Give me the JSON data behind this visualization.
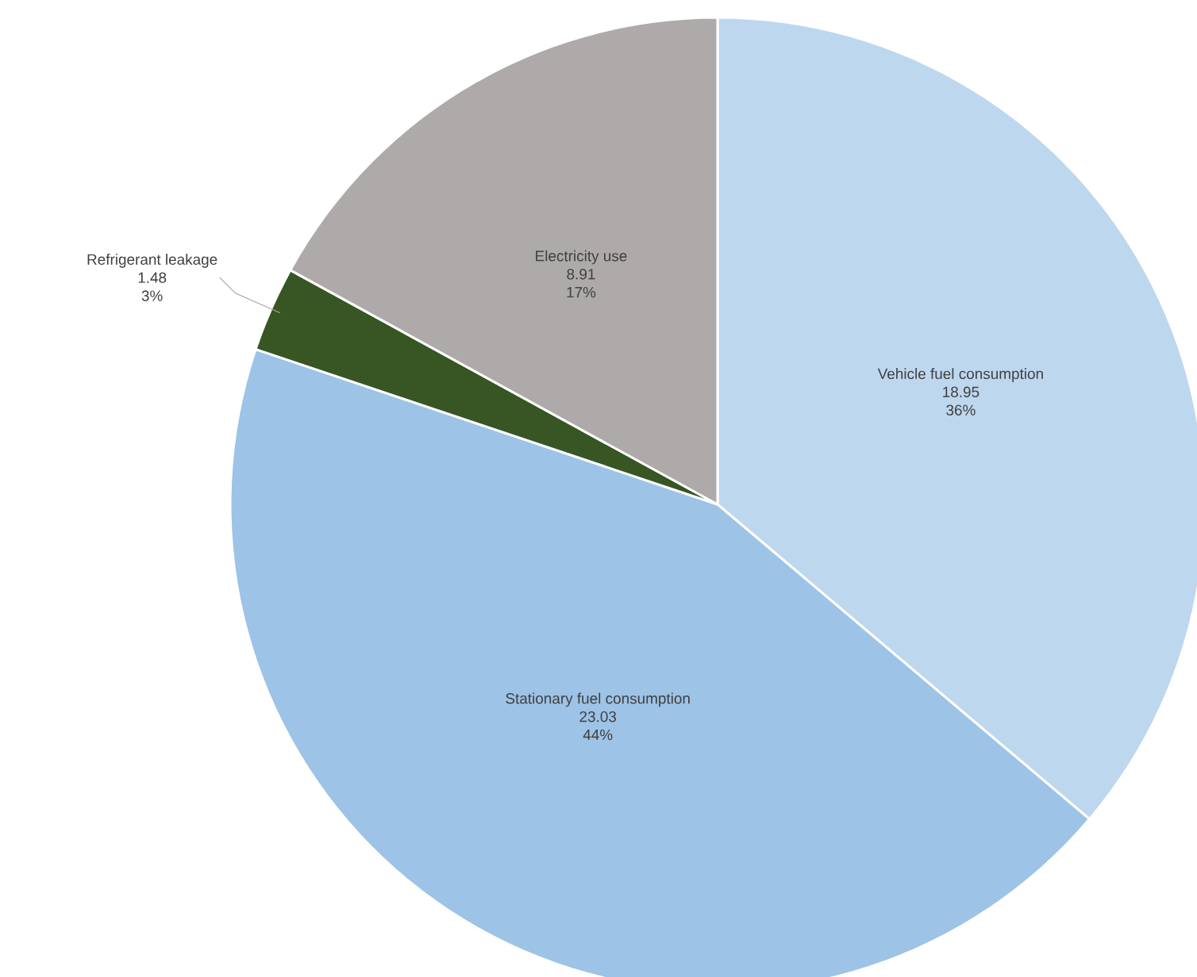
{
  "chart_data": {
    "type": "pie",
    "categories": [
      "Vehicle fuel consumption",
      "Stationary fuel consumption",
      "Refrigerant leakage",
      "Electricity use"
    ],
    "values": [
      18.95,
      23.03,
      1.48,
      8.91
    ],
    "value_labels": [
      "18.95",
      "23.03",
      "1.48",
      "8.91"
    ],
    "annotations": [
      {
        "text": "36%",
        "x": "Vehicle fuel consumption"
      },
      {
        "text": "44%",
        "x": "Stationary fuel consumption"
      },
      {
        "text": "3%",
        "x": "Refrigerant leakage"
      },
      {
        "text": "17%",
        "x": "Electricity use"
      }
    ],
    "colors": [
      "#bdd7ee",
      "#9dc3e6",
      "#375623",
      "#aeaaaa"
    ]
  }
}
